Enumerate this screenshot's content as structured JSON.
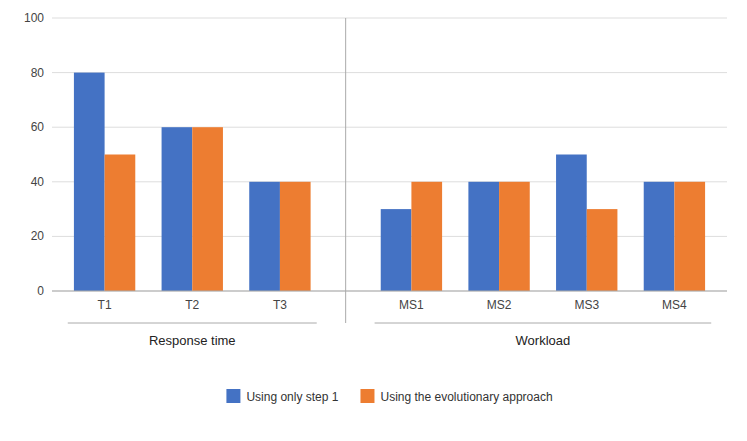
{
  "chart_data": {
    "type": "bar",
    "categories": [
      "T1",
      "T2",
      "T3",
      "MS1",
      "MS2",
      "MS3",
      "MS4"
    ],
    "category_groups": [
      "Response time",
      "Response time",
      "Response time",
      "Workload",
      "Workload",
      "Workload",
      "Workload"
    ],
    "series": [
      {
        "name": "Using only step 1",
        "color": "#4472C4",
        "values": [
          80,
          60,
          40,
          30,
          40,
          50,
          40
        ]
      },
      {
        "name": "Using the evolutionary approach",
        "color": "#ED7D31",
        "values": [
          50,
          60,
          40,
          40,
          40,
          30,
          40
        ]
      }
    ],
    "ylim": [
      0,
      100
    ],
    "yticks": [
      0,
      20,
      40,
      60,
      80,
      100
    ],
    "grid": true,
    "legend": "bottom"
  }
}
